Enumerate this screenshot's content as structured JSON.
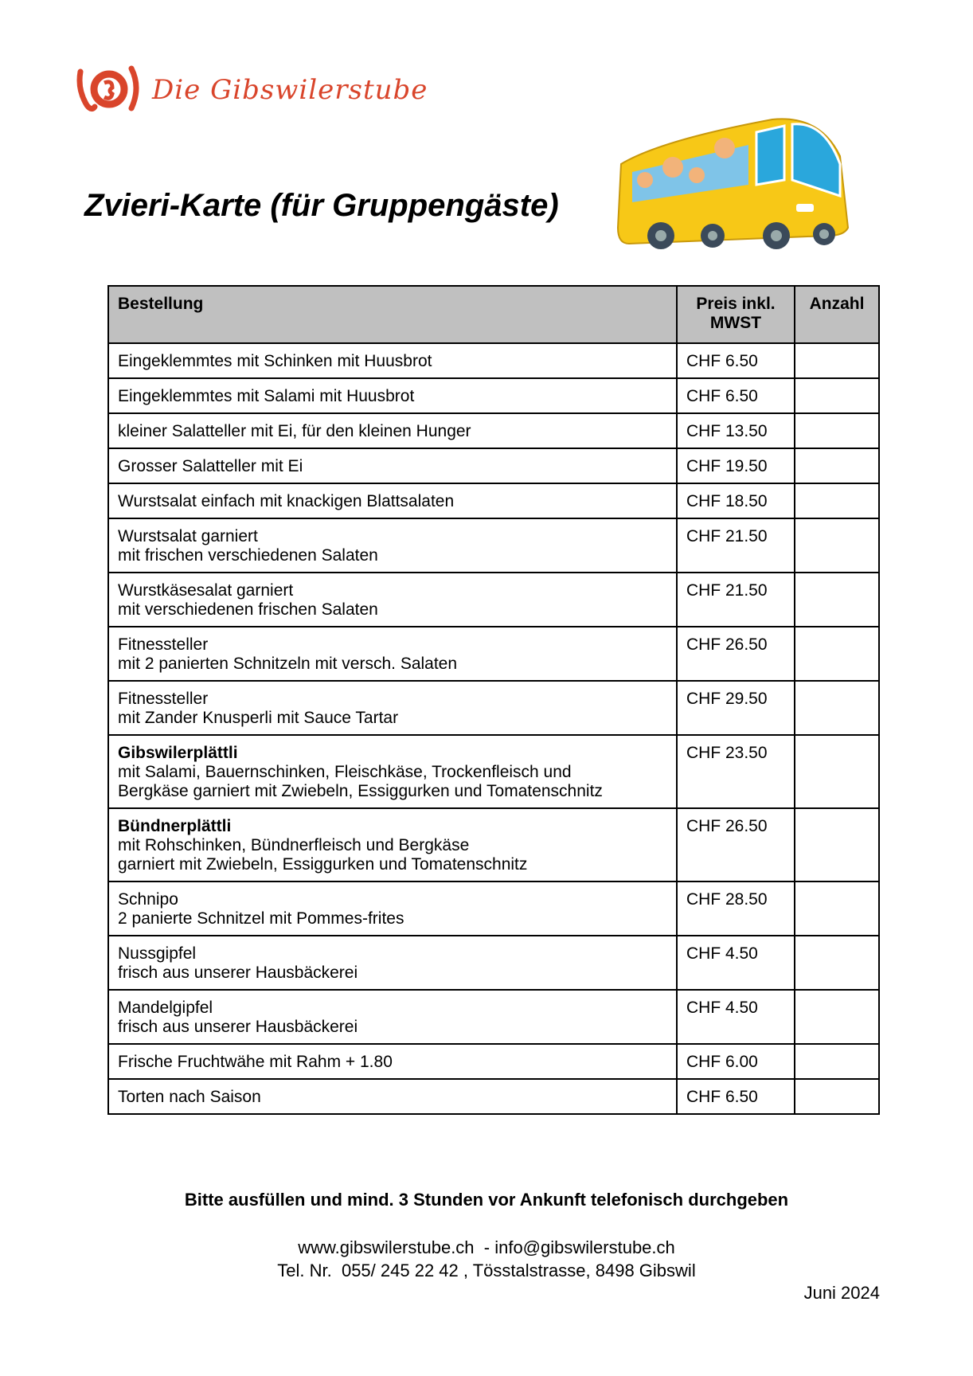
{
  "logo": {
    "text": "Die Gibswilerstube",
    "color": "#d9452b"
  },
  "title": "Zvieri-Karte (für Gruppengäste)",
  "table": {
    "headers": [
      "Bestellung",
      "Preis inkl. MWST",
      "Anzahl"
    ],
    "rows": [
      {
        "name": "Eingeklemmtes mit Schinken mit Huusbrot",
        "bold": false,
        "desc": [],
        "price": "CHF 6.50"
      },
      {
        "name": "Eingeklemmtes mit Salami mit Huusbrot",
        "bold": false,
        "desc": [],
        "price": "CHF 6.50"
      },
      {
        "name": "kleiner Salatteller mit Ei, für den kleinen Hunger",
        "bold": false,
        "desc": [],
        "price": "CHF 13.50"
      },
      {
        "name": "Grosser Salatteller mit Ei",
        "bold": false,
        "desc": [],
        "price": "CHF 19.50"
      },
      {
        "name": "Wurstsalat einfach mit knackigen Blattsalaten",
        "bold": false,
        "desc": [],
        "price": "CHF 18.50"
      },
      {
        "name": "Wurstsalat garniert",
        "bold": false,
        "desc": [
          "mit frischen verschiedenen Salaten"
        ],
        "price": "CHF 21.50"
      },
      {
        "name": "Wurstkäsesalat garniert",
        "bold": false,
        "desc": [
          "mit verschiedenen frischen Salaten"
        ],
        "price": "CHF 21.50"
      },
      {
        "name": "Fitnessteller",
        "bold": false,
        "desc": [
          "mit 2 panierten Schnitzeln mit versch. Salaten"
        ],
        "price": "CHF 26.50"
      },
      {
        "name": "Fitnessteller",
        "bold": false,
        "desc": [
          "mit Zander Knusperli mit Sauce Tartar"
        ],
        "price": "CHF 29.50"
      },
      {
        "name": "Gibswilerplättli",
        "bold": true,
        "desc": [
          "mit Salami, Bauernschinken, Fleischkäse, Trockenfleisch und",
          "Bergkäse garniert mit Zwiebeln, Essiggurken und Tomatenschnitz"
        ],
        "price": "CHF 23.50"
      },
      {
        "name": "Bündnerplättli",
        "bold": true,
        "desc": [
          "mit Rohschinken, Bündnerfleisch und Bergkäse",
          "garniert mit Zwiebeln, Essiggurken und Tomatenschnitz"
        ],
        "price": "CHF 26.50"
      },
      {
        "name": "Schnipo",
        "bold": false,
        "desc": [
          "2 panierte Schnitzel mit Pommes-frites"
        ],
        "price": "CHF 28.50"
      },
      {
        "name": "Nussgipfel",
        "bold": false,
        "desc": [
          "frisch aus unserer Hausbäckerei"
        ],
        "price": "CHF 4.50"
      },
      {
        "name": "Mandelgipfel",
        "bold": false,
        "desc": [
          "frisch aus unserer Hausbäckerei"
        ],
        "price": "CHF 4.50"
      },
      {
        "name": "Frische Fruchtwähe mit Rahm + 1.80",
        "bold": false,
        "desc": [],
        "price": "CHF 6.00"
      },
      {
        "name": "Torten nach Saison",
        "bold": false,
        "desc": [],
        "price": "CHF 6.50"
      }
    ]
  },
  "footer": {
    "note": "Bitte ausfüllen und mind. 3 Stunden vor Ankunft telefonisch durchgeben",
    "web_email": "www.gibswilerstube.ch  - info@gibswilerstube.ch",
    "phone_address": "Tel. Nr.  055/ 245 22 42 , Tösstalstrasse, 8498 Gibswil",
    "date": "Juni 2024"
  },
  "header_bg": "#c0c0c0"
}
